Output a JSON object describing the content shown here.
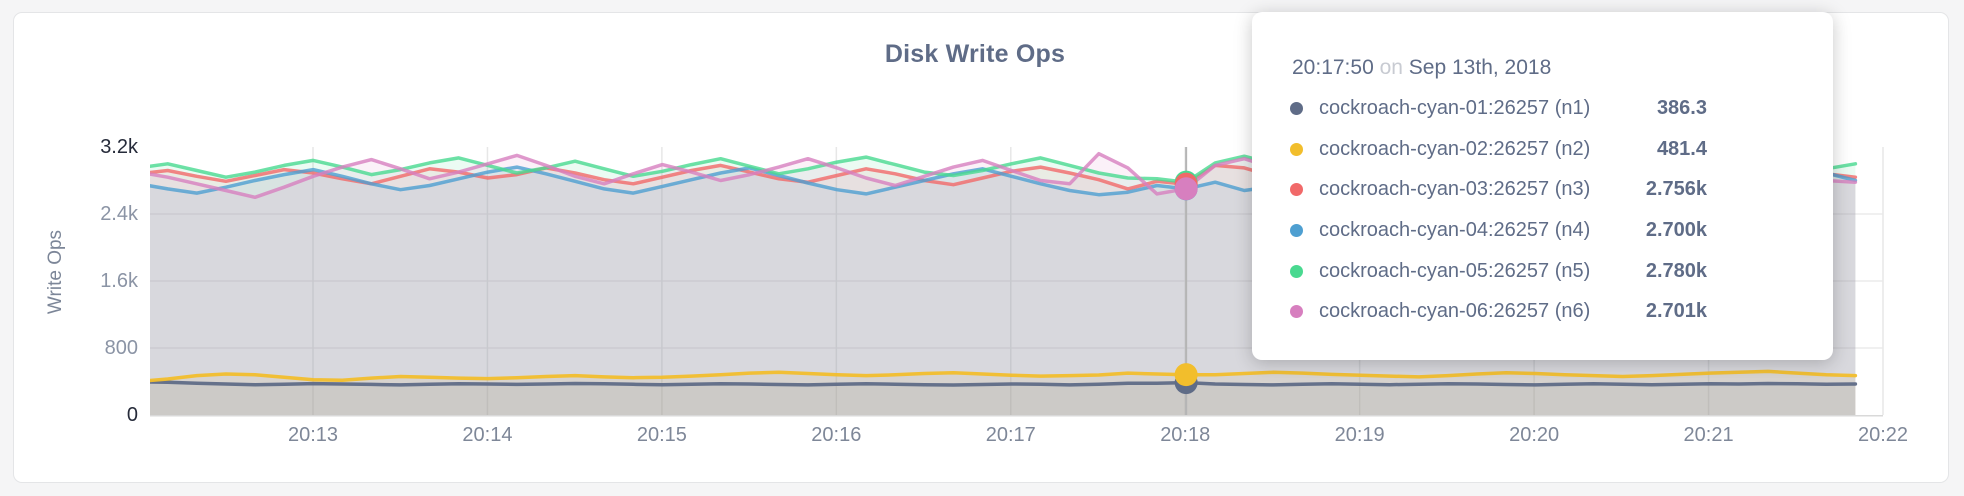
{
  "theme": {
    "title_color": "#5f6c87",
    "axis_label_color": "#7e8798",
    "axis_emphasis_color": "#262b3a",
    "grid_color": "#ececec",
    "hover_line_color": "#b5b5b5"
  },
  "tooltip": {
    "time": "20:17:50",
    "separator": "on",
    "date": "Sep 13th, 2018",
    "rows": [
      {
        "name": "cockroach-cyan-01:26257 (n1)",
        "value": "386.3",
        "color": "#5F6C87"
      },
      {
        "name": "cockroach-cyan-02:26257 (n2)",
        "value": "481.4",
        "color": "#F2BE2C"
      },
      {
        "name": "cockroach-cyan-03:26257 (n3)",
        "value": "2.756k",
        "color": "#F16969"
      },
      {
        "name": "cockroach-cyan-04:26257 (n4)",
        "value": "2.700k",
        "color": "#4E9FD1"
      },
      {
        "name": "cockroach-cyan-05:26257 (n5)",
        "value": "2.780k",
        "color": "#49D990"
      },
      {
        "name": "cockroach-cyan-06:26257 (n6)",
        "value": "2.701k",
        "color": "#D77FBF"
      }
    ]
  },
  "chart_data": {
    "type": "area",
    "title": "Disk Write Ops",
    "ylabel": "Write Ops",
    "ylim": [
      0,
      3200
    ],
    "y_ticks": [
      0,
      800,
      1600,
      2400,
      3200
    ],
    "y_tick_labels": [
      "0",
      "800",
      "1.6k",
      "2.4k",
      "3.2k"
    ],
    "x_tick_labels": [
      "20:13",
      "20:14",
      "20:15",
      "20:16",
      "20:17",
      "20:18",
      "20:19",
      "20:20",
      "20:21",
      "20:22"
    ],
    "x_start_time": "20:12:00",
    "x_step_seconds": 10,
    "grid": true,
    "legend_position": "tooltip",
    "hover_time": "20:17:50",
    "hover_index": 36,
    "series": [
      {
        "name": "cockroach-cyan-01:26257 (n1)",
        "color": "#5F6C87",
        "line_opacity": 0.95,
        "values": [
          395,
          390,
          380,
          370,
          362,
          368,
          375,
          370,
          365,
          360,
          368,
          374,
          370,
          365,
          370,
          376,
          372,
          366,
          362,
          368,
          374,
          370,
          364,
          360,
          366,
          372,
          368,
          362,
          358,
          364,
          370,
          366,
          360,
          368,
          380,
          380,
          386.3,
          370,
          364,
          360,
          366,
          372,
          368,
          362,
          368,
          374,
          370,
          364,
          360,
          366,
          372,
          368,
          362,
          368,
          374,
          370,
          376,
          372,
          366,
          370
        ]
      },
      {
        "name": "cockroach-cyan-02:26257 (n2)",
        "color": "#F2BE2C",
        "line_opacity": 0.95,
        "values": [
          400,
          430,
          470,
          490,
          480,
          450,
          420,
          415,
          440,
          460,
          450,
          440,
          435,
          445,
          460,
          470,
          455,
          445,
          450,
          465,
          480,
          500,
          510,
          495,
          480,
          470,
          480,
          495,
          505,
          490,
          475,
          465,
          470,
          478,
          500,
          490,
          481.4,
          480,
          495,
          510,
          500,
          485,
          475,
          465,
          455,
          470,
          490,
          505,
          495,
          480,
          470,
          460,
          470,
          485,
          500,
          510,
          520,
          500,
          480,
          470
        ]
      },
      {
        "name": "cockroach-cyan-03:26257 (n3)",
        "color": "#F16969",
        "line_opacity": 0.8,
        "values": [
          2880,
          2920,
          2850,
          2790,
          2860,
          2930,
          2890,
          2820,
          2760,
          2850,
          2940,
          2900,
          2830,
          2870,
          2950,
          2890,
          2810,
          2760,
          2840,
          2920,
          2980,
          2900,
          2820,
          2780,
          2860,
          2940,
          2880,
          2800,
          2750,
          2830,
          2910,
          2960,
          2890,
          2810,
          2700,
          2790,
          2756,
          2980,
          2950,
          2850,
          2780,
          2860,
          2930,
          2870,
          2790,
          2740,
          2820,
          2900,
          2950,
          2870,
          2800,
          2760,
          2840,
          2910,
          2860,
          2790,
          2730,
          2810,
          2880,
          2840
        ]
      },
      {
        "name": "cockroach-cyan-04:26257 (n4)",
        "color": "#4E9FD1",
        "line_opacity": 0.8,
        "values": [
          2760,
          2700,
          2650,
          2720,
          2800,
          2870,
          2930,
          2850,
          2760,
          2690,
          2740,
          2820,
          2900,
          2960,
          2880,
          2790,
          2700,
          2650,
          2730,
          2810,
          2890,
          2950,
          2860,
          2770,
          2690,
          2640,
          2720,
          2800,
          2880,
          2940,
          2850,
          2760,
          2680,
          2630,
          2660,
          2740,
          2700,
          2780,
          2680,
          2730,
          2740,
          2660,
          2700,
          2790,
          2870,
          2930,
          2840,
          2750,
          2670,
          2710,
          2800,
          2880,
          2940,
          2850,
          2760,
          2680,
          2720,
          2810,
          2890,
          2800
        ]
      },
      {
        "name": "cockroach-cyan-05:26257 (n5)",
        "color": "#49D990",
        "line_opacity": 0.8,
        "values": [
          2950,
          3000,
          2920,
          2840,
          2900,
          2980,
          3040,
          2960,
          2870,
          2930,
          3010,
          3070,
          2980,
          2890,
          2950,
          3030,
          2940,
          2850,
          2910,
          2990,
          3060,
          2970,
          2880,
          2940,
          3020,
          3080,
          2990,
          2900,
          2860,
          2920,
          3000,
          3070,
          2980,
          2890,
          2830,
          2820,
          2780,
          3010,
          3090,
          3000,
          2910,
          2970,
          3050,
          2960,
          2870,
          2930,
          3010,
          2920,
          2860,
          2940,
          3020,
          3080,
          2990,
          2900,
          2960,
          3040,
          2950,
          2880,
          2940,
          3000
        ]
      },
      {
        "name": "cockroach-cyan-06:26257 (n6)",
        "color": "#D77FBF",
        "line_opacity": 0.8,
        "values": [
          2900,
          2840,
          2760,
          2680,
          2600,
          2720,
          2850,
          2960,
          3050,
          2940,
          2820,
          2900,
          3000,
          3100,
          2980,
          2850,
          2760,
          2880,
          2990,
          2900,
          2800,
          2870,
          2960,
          3060,
          2950,
          2830,
          2740,
          2850,
          2960,
          3040,
          2920,
          2800,
          2760,
          3120,
          2950,
          2640,
          2701,
          2980,
          3060,
          2950,
          2840,
          2760,
          2680,
          2780,
          2900,
          3010,
          2910,
          2800,
          2730,
          2850,
          2970,
          3060,
          2940,
          2820,
          2760,
          2880,
          2980,
          2870,
          2800,
          2780
        ]
      }
    ]
  }
}
